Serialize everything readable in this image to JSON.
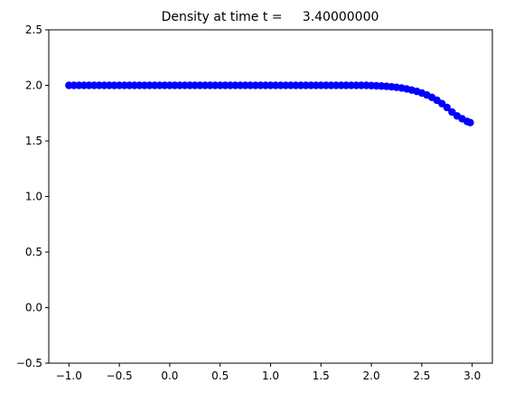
{
  "chart_data": {
    "type": "scatter",
    "title": "Density at time t =     3.40000000",
    "xlabel": "",
    "ylabel": "",
    "xlim": [
      -1.2,
      3.2
    ],
    "ylim": [
      -0.5,
      2.5
    ],
    "grid": false,
    "legend": "none",
    "x_ticks": [
      -1.0,
      -0.5,
      0.0,
      0.5,
      1.0,
      1.5,
      2.0,
      2.5,
      3.0
    ],
    "x_tick_labels": [
      "−1.0",
      "−0.5",
      "0.0",
      "0.5",
      "1.0",
      "1.5",
      "2.0",
      "2.5",
      "3.0"
    ],
    "y_ticks": [
      -0.5,
      0.0,
      0.5,
      1.0,
      1.5,
      2.0,
      2.5
    ],
    "y_tick_labels": [
      "−0.5",
      "0.0",
      "0.5",
      "1.0",
      "1.5",
      "2.0",
      "2.5"
    ],
    "marker_color": "#0000ff",
    "series": [
      {
        "points": [
          [
            -1.0,
            2.0
          ],
          [
            -0.95,
            2.0
          ],
          [
            -0.9,
            2.0
          ],
          [
            -0.85,
            2.0
          ],
          [
            -0.8,
            2.0
          ],
          [
            -0.75,
            2.0
          ],
          [
            -0.7,
            2.0
          ],
          [
            -0.65,
            2.0
          ],
          [
            -0.6,
            2.0
          ],
          [
            -0.55,
            2.0
          ],
          [
            -0.5,
            2.0
          ],
          [
            -0.45,
            2.0
          ],
          [
            -0.4,
            2.0
          ],
          [
            -0.35,
            2.0
          ],
          [
            -0.3,
            2.0
          ],
          [
            -0.25,
            2.0
          ],
          [
            -0.2,
            2.0
          ],
          [
            -0.15,
            2.0
          ],
          [
            -0.1,
            2.0
          ],
          [
            -0.05,
            2.0
          ],
          [
            0.0,
            2.0
          ],
          [
            0.05,
            2.0
          ],
          [
            0.1,
            2.0
          ],
          [
            0.15,
            2.0
          ],
          [
            0.2,
            2.0
          ],
          [
            0.25,
            2.0
          ],
          [
            0.3,
            2.0
          ],
          [
            0.35,
            2.0
          ],
          [
            0.4,
            2.0
          ],
          [
            0.45,
            2.0
          ],
          [
            0.5,
            2.0
          ],
          [
            0.55,
            2.0
          ],
          [
            0.6,
            2.0
          ],
          [
            0.65,
            2.0
          ],
          [
            0.7,
            2.0
          ],
          [
            0.75,
            2.0
          ],
          [
            0.8,
            2.0
          ],
          [
            0.85,
            2.0
          ],
          [
            0.9,
            2.0
          ],
          [
            0.95,
            2.0
          ],
          [
            1.0,
            2.0
          ],
          [
            1.05,
            2.0
          ],
          [
            1.1,
            2.0
          ],
          [
            1.15,
            2.0
          ],
          [
            1.2,
            2.0
          ],
          [
            1.25,
            2.0
          ],
          [
            1.3,
            2.0
          ],
          [
            1.35,
            2.0
          ],
          [
            1.4,
            2.0
          ],
          [
            1.45,
            2.0
          ],
          [
            1.5,
            2.0
          ],
          [
            1.55,
            2.0
          ],
          [
            1.6,
            2.0
          ],
          [
            1.65,
            2.0
          ],
          [
            1.7,
            2.0
          ],
          [
            1.75,
            2.0
          ],
          [
            1.8,
            2.0
          ],
          [
            1.85,
            2.0
          ],
          [
            1.9,
            2.0
          ],
          [
            1.95,
            2.0
          ],
          [
            2.0,
            1.998
          ],
          [
            2.05,
            1.996
          ],
          [
            2.1,
            1.994
          ],
          [
            2.15,
            1.991
          ],
          [
            2.2,
            1.987
          ],
          [
            2.25,
            1.982
          ],
          [
            2.3,
            1.976
          ],
          [
            2.35,
            1.968
          ],
          [
            2.4,
            1.958
          ],
          [
            2.45,
            1.946
          ],
          [
            2.5,
            1.931
          ],
          [
            2.55,
            1.913
          ],
          [
            2.6,
            1.892
          ],
          [
            2.65,
            1.866
          ],
          [
            2.7,
            1.836
          ],
          [
            2.75,
            1.801
          ],
          [
            2.8,
            1.76
          ],
          [
            2.85,
            1.725
          ],
          [
            2.9,
            1.7
          ],
          [
            2.95,
            1.675
          ],
          [
            2.98,
            1.665
          ]
        ]
      }
    ]
  }
}
